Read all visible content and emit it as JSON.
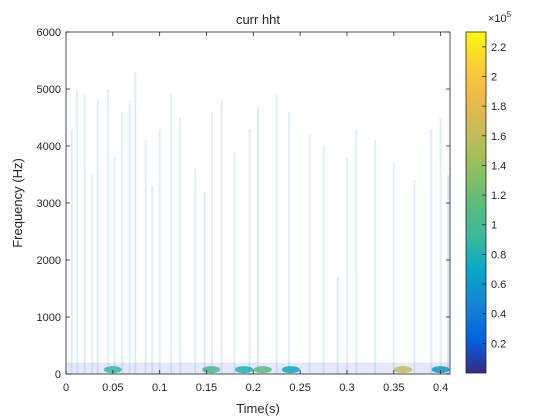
{
  "chart_data": {
    "type": "heatmap",
    "title": "curr hht",
    "xlabel": "Time(s)",
    "ylabel": "Frequency (Hz)",
    "xlim": [
      0,
      0.41
    ],
    "ylim": [
      0,
      6000
    ],
    "x_ticks": [
      0,
      0.05,
      0.1,
      0.15,
      0.2,
      0.25,
      0.3,
      0.35,
      0.4
    ],
    "x_tick_labels": [
      "0",
      "0.05",
      "0.1",
      "0.15",
      "0.2",
      "0.25",
      "0.3",
      "0.35",
      "0.4"
    ],
    "y_ticks": [
      0,
      1000,
      2000,
      3000,
      4000,
      5000,
      6000
    ],
    "y_tick_labels": [
      "0",
      "1000",
      "2000",
      "3000",
      "4000",
      "5000",
      "6000"
    ],
    "colorbar": {
      "colormap": "parula",
      "range": [
        0,
        2.3
      ],
      "exponent_label": "×10",
      "exponent_power": "5",
      "ticks": [
        0.2,
        0.4,
        0.6,
        0.8,
        1,
        1.2,
        1.4,
        1.6,
        1.8,
        2,
        2.2
      ],
      "tick_labels": [
        "0.2",
        "0.4",
        "0.6",
        "0.8",
        "1",
        "1.2",
        "1.4",
        "1.6",
        "1.8",
        "2",
        "2.2"
      ]
    },
    "grid": false,
    "strong_components": [
      {
        "time": 0.05,
        "freq": 60,
        "value": 0.9
      },
      {
        "time": 0.155,
        "freq": 60,
        "value": 1.0
      },
      {
        "time": 0.19,
        "freq": 60,
        "value": 0.8
      },
      {
        "time": 0.21,
        "freq": 60,
        "value": 1.1
      },
      {
        "time": 0.24,
        "freq": 60,
        "value": 0.7
      },
      {
        "time": 0.36,
        "freq": 60,
        "value": 1.6
      },
      {
        "time": 0.4,
        "freq": 60,
        "value": 0.6
      }
    ],
    "transient_lines": [
      {
        "time": 0.006,
        "fmax": 4300,
        "value": 0.15
      },
      {
        "time": 0.012,
        "fmax": 5000,
        "value": 0.12
      },
      {
        "time": 0.02,
        "fmax": 4900,
        "value": 0.1
      },
      {
        "time": 0.028,
        "fmax": 3500,
        "value": 0.12
      },
      {
        "time": 0.034,
        "fmax": 4800,
        "value": 0.14
      },
      {
        "time": 0.045,
        "fmax": 5000,
        "value": 0.12
      },
      {
        "time": 0.052,
        "fmax": 3800,
        "value": 0.1
      },
      {
        "time": 0.06,
        "fmax": 4600,
        "value": 0.14
      },
      {
        "time": 0.068,
        "fmax": 4800,
        "value": 0.12
      },
      {
        "time": 0.074,
        "fmax": 5300,
        "value": 0.16
      },
      {
        "time": 0.085,
        "fmax": 4100,
        "value": 0.1
      },
      {
        "time": 0.092,
        "fmax": 3300,
        "value": 0.1
      },
      {
        "time": 0.1,
        "fmax": 4300,
        "value": 0.12
      },
      {
        "time": 0.112,
        "fmax": 4900,
        "value": 0.1
      },
      {
        "time": 0.122,
        "fmax": 4500,
        "value": 0.12
      },
      {
        "time": 0.138,
        "fmax": 3600,
        "value": 0.1
      },
      {
        "time": 0.148,
        "fmax": 3200,
        "value": 0.14
      },
      {
        "time": 0.156,
        "fmax": 4600,
        "value": 0.12
      },
      {
        "time": 0.166,
        "fmax": 4800,
        "value": 0.14
      },
      {
        "time": 0.18,
        "fmax": 3900,
        "value": 0.1
      },
      {
        "time": 0.196,
        "fmax": 4300,
        "value": 0.12
      },
      {
        "time": 0.205,
        "fmax": 4700,
        "value": 0.14
      },
      {
        "time": 0.225,
        "fmax": 4900,
        "value": 0.1
      },
      {
        "time": 0.238,
        "fmax": 4600,
        "value": 0.12
      },
      {
        "time": 0.26,
        "fmax": 4200,
        "value": 0.1
      },
      {
        "time": 0.275,
        "fmax": 4000,
        "value": 0.12
      },
      {
        "time": 0.29,
        "fmax": 1700,
        "value": 0.25
      },
      {
        "time": 0.3,
        "fmax": 3800,
        "value": 0.12
      },
      {
        "time": 0.31,
        "fmax": 4300,
        "value": 0.12
      },
      {
        "time": 0.33,
        "fmax": 4100,
        "value": 0.1
      },
      {
        "time": 0.35,
        "fmax": 3700,
        "value": 0.12
      },
      {
        "time": 0.372,
        "fmax": 3400,
        "value": 0.12
      },
      {
        "time": 0.39,
        "fmax": 4300,
        "value": 0.12
      },
      {
        "time": 0.4,
        "fmax": 4500,
        "value": 0.1
      },
      {
        "time": 0.408,
        "fmax": 3500,
        "value": 0.3
      }
    ]
  }
}
